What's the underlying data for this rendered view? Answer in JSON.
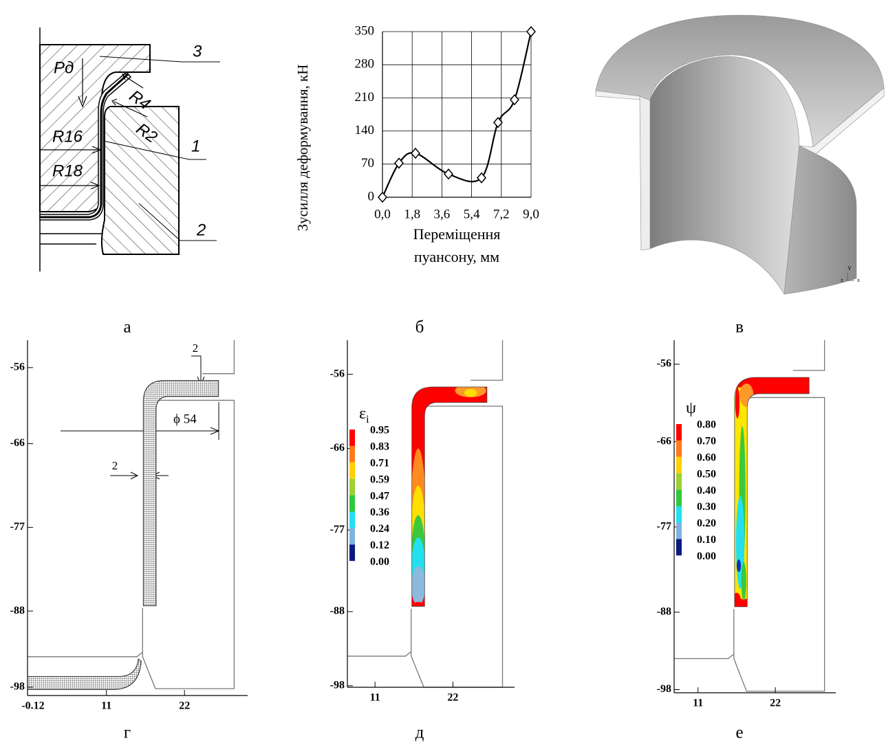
{
  "panel_labels": [
    "а",
    "б",
    "в",
    "г",
    "д",
    "е"
  ],
  "panel_a": {
    "force": "Pд",
    "r4": "R4",
    "r2": "R2",
    "r16": "R16",
    "r18": "R18",
    "part3": "3",
    "part1": "1",
    "part2": "2"
  },
  "chart_data": {
    "type": "line",
    "ylabel": "Зусилля деформування, кН",
    "xlabel": [
      "Переміщення",
      "пуансону, мм"
    ],
    "x": [
      0,
      1.0,
      2.0,
      4.0,
      6.0,
      7.0,
      8.0,
      9.0
    ],
    "values": [
      0,
      72,
      93,
      49,
      41,
      158,
      206,
      350
    ],
    "color": "#000000",
    "xlim": [
      0,
      9.0
    ],
    "ylim": [
      0,
      350
    ],
    "xticks": [
      {
        "value": 0,
        "label": "0,0"
      },
      {
        "value": 1.8,
        "label": "1,8"
      },
      {
        "value": 3.6,
        "label": "3,6"
      },
      {
        "value": 5.4,
        "label": "5,4"
      },
      {
        "value": 7.2,
        "label": "7,2"
      },
      {
        "value": 9.0,
        "label": "9,0"
      }
    ],
    "yticks": [
      0,
      70,
      140,
      210,
      280,
      350
    ],
    "grid": true
  },
  "panel_v": {
    "axes": [
      "Y",
      "z",
      "x"
    ]
  },
  "panel_g": {
    "ylim": [
      -99.1,
      -52.4
    ],
    "yticks": [
      -56,
      -66,
      -77,
      -88,
      -98
    ],
    "xlim": [
      -0.12,
      30.9
    ],
    "xticks": [
      -0.12,
      11,
      22
    ],
    "annotations": {
      "flange_thickness": "2",
      "diameter": "ϕ 54",
      "wall_thickness": "2"
    }
  },
  "panel_d": {
    "ylim": [
      -98.2,
      -51.4
    ],
    "yticks": [
      -56,
      -66,
      -77,
      -88,
      -98
    ],
    "xlim": [
      7.1,
      30.7
    ],
    "xticks": [
      11,
      22
    ],
    "legend": {
      "symbol": "ε",
      "subscript": "i",
      "labels": [
        "0.95",
        "0.83",
        "0.71",
        "0.59",
        "0.47",
        "0.36",
        "0.24",
        "0.12",
        "0.00"
      ]
    }
  },
  "panel_e": {
    "ylim": [
      -98.4,
      -52.9
    ],
    "yticks": [
      -56,
      -66,
      -77,
      -88,
      -98
    ],
    "xlim": [
      7.6,
      30.6
    ],
    "xticks": [
      11,
      22
    ],
    "legend": {
      "symbol": "ψ",
      "labels": [
        "0.80",
        "0.70",
        "0.60",
        "0.50",
        "0.40",
        "0.30",
        "0.20",
        "0.10",
        "0.00"
      ]
    }
  }
}
